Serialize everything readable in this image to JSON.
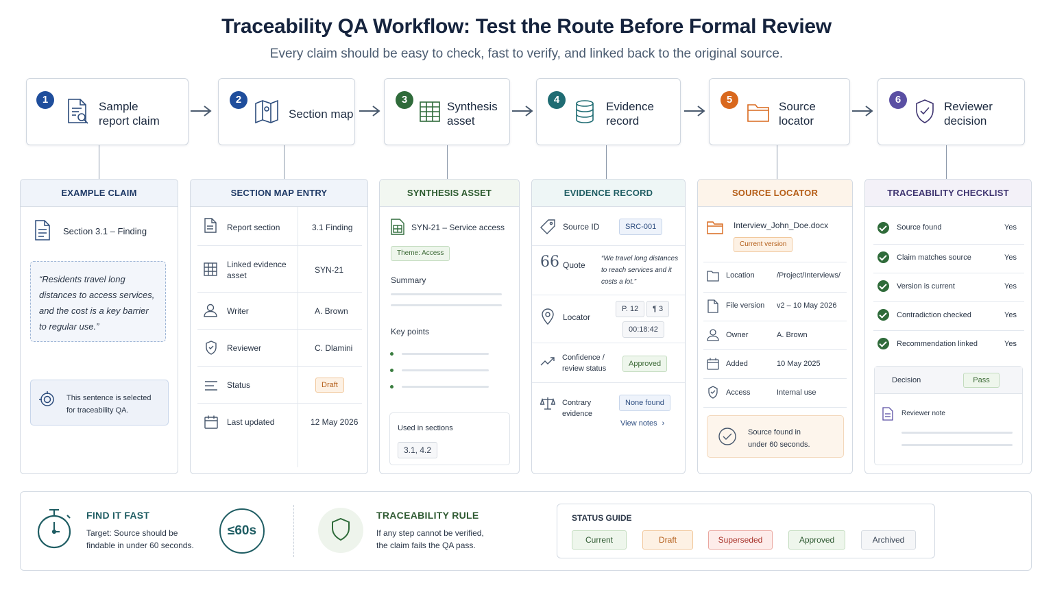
{
  "header": {
    "title": "Traceability QA Workflow: Test the Route Before Formal Review",
    "subtitle": "Every claim should be easy to check, fast to verify, and linked back to the original source."
  },
  "colors": {
    "step1": "#1f4e9c",
    "step2": "#1f4e9c",
    "step3": "#2f6b3a",
    "step4": "#1f6c73",
    "step5": "#d9681d",
    "step6": "#5a4fa3"
  },
  "steps": [
    {
      "num": "1",
      "line1": "Sample",
      "line2": "report claim",
      "icon": "document-search-icon"
    },
    {
      "num": "2",
      "line1": "Section map",
      "line2": "",
      "icon": "map-icon"
    },
    {
      "num": "3",
      "line1": "Synthesis",
      "line2": "asset",
      "icon": "grid-table-icon"
    },
    {
      "num": "4",
      "line1": "Evidence",
      "line2": "record",
      "icon": "database-icon"
    },
    {
      "num": "5",
      "line1": "Source",
      "line2": "locator",
      "icon": "folder-icon"
    },
    {
      "num": "6",
      "line1": "Reviewer",
      "line2": "decision",
      "icon": "shield-check-icon"
    }
  ],
  "example_claim": {
    "header": "EXAMPLE CLAIM",
    "section": "Section 3.1 – Finding",
    "quote_l1": "“Residents travel long",
    "quote_l2": "distances to access services,",
    "quote_l3": "and the cost is a key barrier",
    "quote_l4": "to regular use.”",
    "note_l1": "This sentence is selected",
    "note_l2": "for traceability QA."
  },
  "section_map": {
    "header": "SECTION MAP ENTRY",
    "rows": [
      {
        "label": "Report section",
        "label2": "",
        "value": "3.1 Finding"
      },
      {
        "label": "Linked evidence",
        "label2": "asset",
        "value": "SYN-21"
      },
      {
        "label": "Writer",
        "label2": "",
        "value": "A. Brown"
      },
      {
        "label": "Reviewer",
        "label2": "",
        "value": "C. Dlamini"
      },
      {
        "label": "Status",
        "label2": "",
        "value": "Draft"
      },
      {
        "label": "Last updated",
        "label2": "",
        "value": "12 May 2026"
      }
    ]
  },
  "synthesis": {
    "header": "SYNTHESIS ASSET",
    "name": "SYN-21 – Service access",
    "theme": "Theme: Access",
    "summary": "Summary",
    "key_points": "Key points",
    "used_in": "Used in sections",
    "sections": "3.1, 4.2"
  },
  "evidence": {
    "header": "EVIDENCE RECORD",
    "source_id_label": "Source ID",
    "source_id": "SRC-001",
    "quote_label": "Quote",
    "quote_l1": "“We travel long distances",
    "quote_l2": "to reach services and it",
    "quote_l3": "costs a lot.”",
    "locator_label": "Locator",
    "page": "P. 12",
    "para": "¶ 3",
    "time": "00:18:42",
    "conf_l1": "Confidence /",
    "conf_l2": "review status",
    "approved": "Approved",
    "contrary_l1": "Contrary",
    "contrary_l2": "evidence",
    "none_found": "None found",
    "view_notes": "View notes"
  },
  "source_locator": {
    "header": "SOURCE LOCATOR",
    "file": "Interview_John_Doe.docx",
    "current": "Current version",
    "rows": [
      {
        "label": "Location",
        "value": "/Project/Interviews/"
      },
      {
        "label": "File version",
        "value": "v2 – 10 May 2026"
      },
      {
        "label": "Owner",
        "value": "A. Brown"
      },
      {
        "label": "Added",
        "value": "10 May 2025"
      },
      {
        "label": "Access",
        "value": "Internal use"
      }
    ],
    "found_l1": "Source found in",
    "found_l2": "under 60 seconds."
  },
  "checklist": {
    "header": "TRACEABILITY CHECKLIST",
    "items": [
      {
        "label": "Source found",
        "value": "Yes"
      },
      {
        "label": "Claim matches source",
        "value": "Yes"
      },
      {
        "label": "Version is current",
        "value": "Yes"
      },
      {
        "label": "Contradiction checked",
        "value": "Yes"
      },
      {
        "label": "Recommendation linked",
        "value": "Yes"
      }
    ],
    "decision_label": "Decision",
    "decision": "Pass",
    "reviewer_note": "Reviewer note"
  },
  "bottom": {
    "find_title": "FIND IT FAST",
    "find_l1": "Target: Source should be",
    "find_l2": "findable in under 60 seconds.",
    "timer": "≤60s",
    "rule_title": "TRACEABILITY RULE",
    "rule_l1": "If any step cannot be verified,",
    "rule_l2": "the claim fails the QA pass.",
    "guide_title": "STATUS GUIDE",
    "statuses": [
      "Current",
      "Draft",
      "Superseded",
      "Approved",
      "Archived"
    ]
  }
}
